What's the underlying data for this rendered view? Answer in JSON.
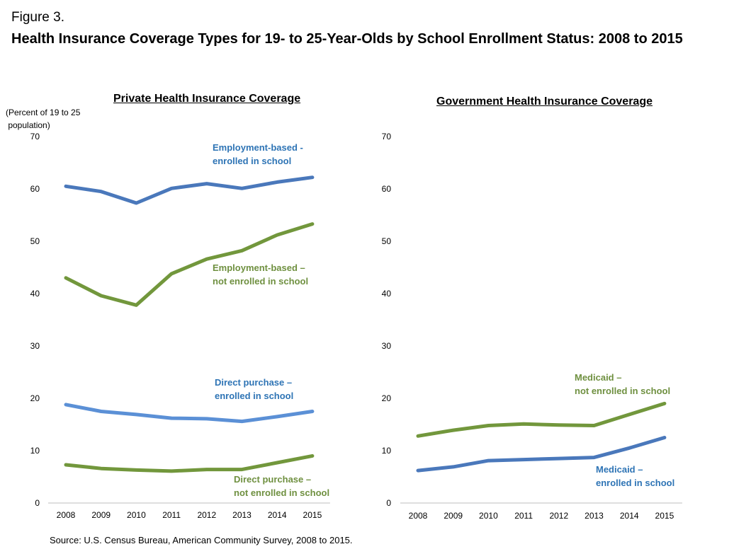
{
  "figure_label": "Figure 3.",
  "title": "Health Insurance Coverage Types for 19- to 25-Year-Olds by School Enrollment Status: 2008 to 2015",
  "y_axis_label_line1": "(Percent of 19 to 25",
  "y_axis_label_line2": " population)",
  "source": "Source: U.S. Census Bureau, American Community Survey, 2008 to 2015.",
  "colors": {
    "dark_blue": "#4a78bb",
    "light_blue": "#5b90d6",
    "green": "#72973c",
    "label_blue": "#2e74b5",
    "label_green": "#6f9040",
    "axis": "#bfbfbf"
  },
  "chart_data": [
    {
      "type": "line",
      "title": "Private Health Insurance Coverage",
      "xlabel": "",
      "ylabel": "(Percent of 19 to 25 population)",
      "x": [
        "2008",
        "2009",
        "2010",
        "2011",
        "2012",
        "2013",
        "2014",
        "2015"
      ],
      "y_ticks": [
        "0",
        "10",
        "20",
        "30",
        "40",
        "50",
        "60",
        "70"
      ],
      "ylim": [
        0,
        70
      ],
      "series": [
        {
          "name": "Employment-based - enrolled in school",
          "label_lines": [
            "Employment-based -",
            "enrolled in school"
          ],
          "color": "dark_blue",
          "values": [
            60.5,
            59.5,
            57.3,
            60.1,
            61.0,
            60.1,
            61.3,
            62.2
          ]
        },
        {
          "name": "Employment-based – not enrolled in school",
          "label_lines": [
            "Employment-based –",
            "not enrolled in school"
          ],
          "color": "green",
          "values": [
            43.0,
            39.6,
            37.8,
            43.8,
            46.6,
            48.2,
            51.2,
            53.3
          ]
        },
        {
          "name": "Direct purchase – enrolled in school",
          "label_lines": [
            "Direct purchase –",
            "enrolled in school"
          ],
          "color": "light_blue",
          "values": [
            18.8,
            17.5,
            16.9,
            16.2,
            16.1,
            15.6,
            16.5,
            17.5
          ]
        },
        {
          "name": "Direct purchase – not enrolled in school",
          "label_lines": [
            "Direct purchase –",
            "not enrolled in school"
          ],
          "color": "green",
          "values": [
            7.3,
            6.6,
            6.3,
            6.1,
            6.4,
            6.4,
            7.7,
            9.0
          ]
        }
      ]
    },
    {
      "type": "line",
      "title": "Government Health Insurance Coverage",
      "xlabel": "",
      "ylabel": "",
      "x": [
        "2008",
        "2009",
        "2010",
        "2011",
        "2012",
        "2013",
        "2014",
        "2015"
      ],
      "y_ticks": [
        "0",
        "10",
        "20",
        "30",
        "40",
        "50",
        "60",
        "70"
      ],
      "ylim": [
        0,
        70
      ],
      "series": [
        {
          "name": "Medicaid – not enrolled in school",
          "label_lines": [
            "Medicaid –",
            "not enrolled in school"
          ],
          "color": "green",
          "values": [
            12.8,
            13.9,
            14.8,
            15.1,
            14.9,
            14.8,
            16.9,
            19.0
          ]
        },
        {
          "name": "Medicaid – enrolled in school",
          "label_lines": [
            "Medicaid –",
            "enrolled in school"
          ],
          "color": "dark_blue",
          "values": [
            6.2,
            6.9,
            8.1,
            8.3,
            8.5,
            8.7,
            10.5,
            12.5
          ]
        }
      ]
    }
  ]
}
